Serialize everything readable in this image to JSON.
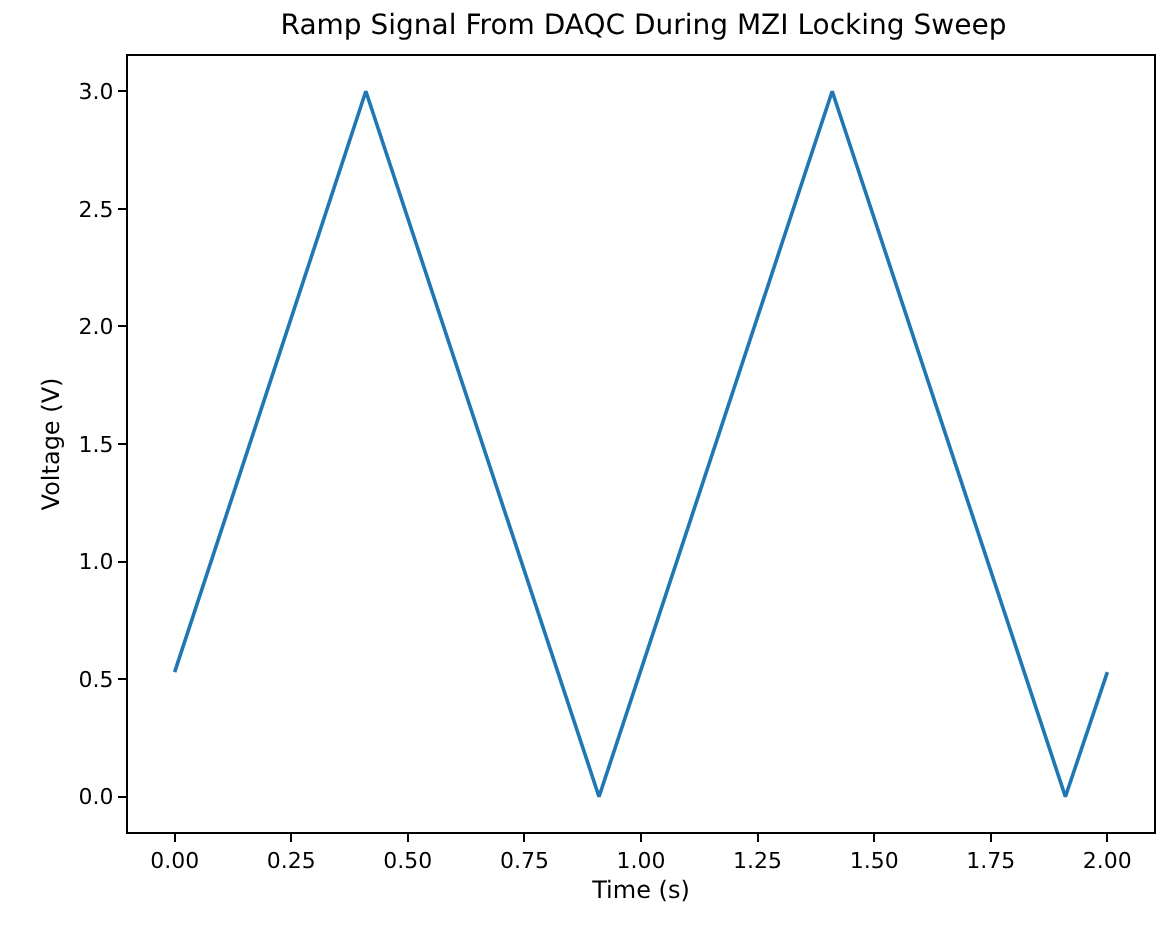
{
  "chart_data": {
    "type": "line",
    "title": "Ramp Signal From DAQC During MZI Locking Sweep",
    "xlabel": "Time (s)",
    "ylabel": "Voltage (V)",
    "x": [
      0.0,
      0.41,
      0.91,
      1.41,
      1.91,
      2.0
    ],
    "series": [
      {
        "color": "#1f77b4",
        "values": [
          0.53,
          3.0,
          0.0,
          3.0,
          0.0,
          0.53
        ]
      }
    ],
    "xlim": [
      -0.1,
      2.1
    ],
    "ylim": [
      -0.15,
      3.15
    ],
    "xticks": [
      {
        "value": 0,
        "label": "0.00"
      },
      {
        "value": 0.25,
        "label": "0.25"
      },
      {
        "value": 0.5,
        "label": "0.50"
      },
      {
        "value": 0.75,
        "label": "0.75"
      },
      {
        "value": 1,
        "label": "1.00"
      },
      {
        "value": 1.25,
        "label": "1.25"
      },
      {
        "value": 1.5,
        "label": "1.50"
      },
      {
        "value": 1.75,
        "label": "1.75"
      },
      {
        "value": 2,
        "label": "2.00"
      }
    ],
    "yticks": [
      {
        "value": 0,
        "label": "0.0"
      },
      {
        "value": 0.5,
        "label": "0.5"
      },
      {
        "value": 1,
        "label": "1.0"
      },
      {
        "value": 1.5,
        "label": "1.5"
      },
      {
        "value": 2,
        "label": "2.0"
      },
      {
        "value": 2.5,
        "label": "2.5"
      },
      {
        "value": 3,
        "label": "3.0"
      }
    ],
    "marker": "none",
    "line_style": "solid"
  }
}
